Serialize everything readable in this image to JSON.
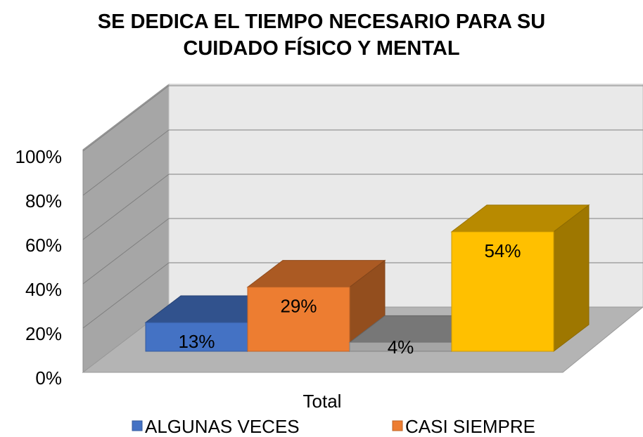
{
  "chart_data": {
    "type": "bar3d",
    "title": "SE DEDICA EL TIEMPO NECESARIO PARA SU CUIDADO FÍSICO Y MENTAL",
    "categories": [
      "Total"
    ],
    "series": [
      {
        "name": "ALGUNAS VECES",
        "color": "#4472c4",
        "values": [
          13
        ],
        "value_labels": [
          "13%"
        ]
      },
      {
        "name": "CASI SIEMPRE",
        "color": "#ed7d31",
        "values": [
          29
        ],
        "value_labels": [
          "29%"
        ]
      },
      {
        "color": "#a5a5a5",
        "values": [
          4
        ],
        "value_labels": [
          "4%"
        ]
      },
      {
        "color": "#ffc000",
        "values": [
          54
        ],
        "value_labels": [
          "54%"
        ]
      }
    ],
    "ylim": [
      0,
      100
    ],
    "yticks": [
      {
        "value": 0,
        "label": "0%"
      },
      {
        "value": 20,
        "label": "20%"
      },
      {
        "value": 40,
        "label": "40%"
      },
      {
        "value": 60,
        "label": "60%"
      },
      {
        "value": 80,
        "label": "80%"
      },
      {
        "value": 100,
        "label": "100%"
      }
    ],
    "grid": true,
    "legend": "bottom"
  }
}
